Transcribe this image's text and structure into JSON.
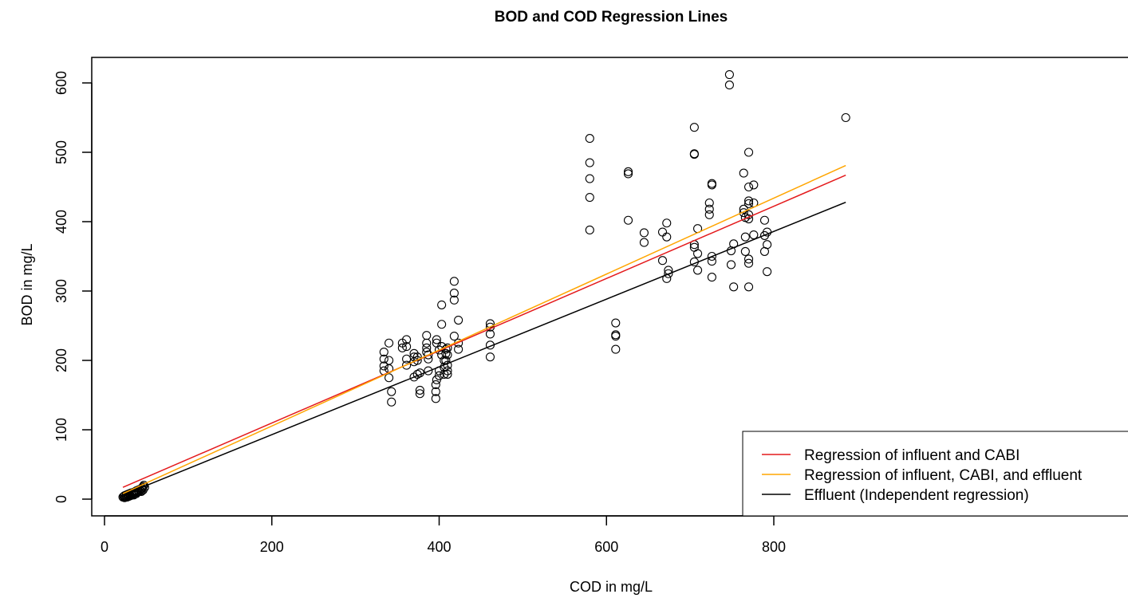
{
  "chart_data": {
    "type": "scatter",
    "title": "BOD and COD Regression Lines",
    "xlabel": "COD in mg/L",
    "ylabel": "BOD in mg/L",
    "xlim": [
      0,
      930
    ],
    "ylim": [
      -25,
      640
    ],
    "xticks": [
      0,
      200,
      400,
      600,
      800
    ],
    "yticks": [
      0,
      100,
      200,
      300,
      400,
      500,
      600
    ],
    "grid": false,
    "legend_position": "bottom-right",
    "points": [
      [
        22,
        3
      ],
      [
        23,
        4
      ],
      [
        24,
        2
      ],
      [
        24,
        5
      ],
      [
        25,
        3
      ],
      [
        26,
        4
      ],
      [
        26,
        6
      ],
      [
        27,
        3
      ],
      [
        28,
        5
      ],
      [
        28,
        7
      ],
      [
        29,
        4
      ],
      [
        30,
        6
      ],
      [
        30,
        8
      ],
      [
        31,
        5
      ],
      [
        32,
        7
      ],
      [
        32,
        9
      ],
      [
        33,
        6
      ],
      [
        34,
        8
      ],
      [
        35,
        10
      ],
      [
        35,
        6
      ],
      [
        36,
        9
      ],
      [
        37,
        11
      ],
      [
        38,
        8
      ],
      [
        38,
        12
      ],
      [
        39,
        10
      ],
      [
        40,
        13
      ],
      [
        41,
        11
      ],
      [
        42,
        14
      ],
      [
        43,
        12
      ],
      [
        44,
        15
      ],
      [
        45,
        16
      ],
      [
        46,
        18
      ],
      [
        47,
        20
      ],
      [
        48,
        17
      ],
      [
        44,
        11
      ],
      [
        46,
        13
      ],
      [
        334,
        212
      ],
      [
        334,
        202
      ],
      [
        334,
        192
      ],
      [
        334,
        185
      ],
      [
        340,
        225
      ],
      [
        340,
        200
      ],
      [
        340,
        188
      ],
      [
        340,
        175
      ],
      [
        343,
        155
      ],
      [
        343,
        140
      ],
      [
        356,
        225
      ],
      [
        356,
        218
      ],
      [
        361,
        230
      ],
      [
        361,
        220
      ],
      [
        361,
        202
      ],
      [
        361,
        193
      ],
      [
        370,
        210
      ],
      [
        370,
        205
      ],
      [
        370,
        198
      ],
      [
        370,
        176
      ],
      [
        374,
        205
      ],
      [
        374,
        200
      ],
      [
        374,
        180
      ],
      [
        377,
        182
      ],
      [
        377,
        157
      ],
      [
        377,
        152
      ],
      [
        385,
        236
      ],
      [
        385,
        225
      ],
      [
        385,
        218
      ],
      [
        385,
        212
      ],
      [
        387,
        208
      ],
      [
        387,
        202
      ],
      [
        387,
        185
      ],
      [
        396,
        145
      ],
      [
        396,
        155
      ],
      [
        396,
        165
      ],
      [
        397,
        172
      ],
      [
        397,
        230
      ],
      [
        397,
        225
      ],
      [
        400,
        215
      ],
      [
        400,
        185
      ],
      [
        400,
        178
      ],
      [
        403,
        280
      ],
      [
        403,
        252
      ],
      [
        403,
        220
      ],
      [
        403,
        208
      ],
      [
        406,
        200
      ],
      [
        406,
        190
      ],
      [
        406,
        180
      ],
      [
        408,
        216
      ],
      [
        408,
        210
      ],
      [
        408,
        200
      ],
      [
        410,
        218
      ],
      [
        410,
        208
      ],
      [
        410,
        193
      ],
      [
        410,
        185
      ],
      [
        410,
        180
      ],
      [
        418,
        314
      ],
      [
        418,
        297
      ],
      [
        418,
        287
      ],
      [
        418,
        235
      ],
      [
        423,
        258
      ],
      [
        423,
        225
      ],
      [
        423,
        216
      ],
      [
        461,
        253
      ],
      [
        461,
        248
      ],
      [
        461,
        238
      ],
      [
        461,
        222
      ],
      [
        461,
        205
      ],
      [
        580,
        520
      ],
      [
        580,
        485
      ],
      [
        580,
        462
      ],
      [
        580,
        435
      ],
      [
        580,
        388
      ],
      [
        611,
        254
      ],
      [
        611,
        237
      ],
      [
        611,
        235
      ],
      [
        611,
        216
      ],
      [
        626,
        472
      ],
      [
        626,
        469
      ],
      [
        626,
        402
      ],
      [
        645,
        384
      ],
      [
        645,
        370
      ],
      [
        667,
        385
      ],
      [
        667,
        344
      ],
      [
        672,
        398
      ],
      [
        672,
        378
      ],
      [
        672,
        318
      ],
      [
        674,
        330
      ],
      [
        674,
        325
      ],
      [
        705,
        536
      ],
      [
        705,
        498
      ],
      [
        705,
        497
      ],
      [
        705,
        367
      ],
      [
        705,
        363
      ],
      [
        705,
        342
      ],
      [
        709,
        390
      ],
      [
        709,
        354
      ],
      [
        709,
        330
      ],
      [
        723,
        427
      ],
      [
        723,
        418
      ],
      [
        723,
        410
      ],
      [
        726,
        455
      ],
      [
        726,
        453
      ],
      [
        726,
        350
      ],
      [
        726,
        343
      ],
      [
        726,
        320
      ],
      [
        747,
        612
      ],
      [
        747,
        597
      ],
      [
        749,
        338
      ],
      [
        749,
        358
      ],
      [
        752,
        368
      ],
      [
        752,
        306
      ],
      [
        764,
        470
      ],
      [
        764,
        418
      ],
      [
        764,
        413
      ],
      [
        766,
        406
      ],
      [
        766,
        378
      ],
      [
        766,
        357
      ],
      [
        770,
        500
      ],
      [
        770,
        450
      ],
      [
        770,
        430
      ],
      [
        770,
        426
      ],
      [
        770,
        410
      ],
      [
        770,
        404
      ],
      [
        770,
        346
      ],
      [
        770,
        340
      ],
      [
        770,
        306
      ],
      [
        776,
        453
      ],
      [
        776,
        427
      ],
      [
        776,
        381
      ],
      [
        789,
        402
      ],
      [
        789,
        380
      ],
      [
        789,
        357
      ],
      [
        792,
        385
      ],
      [
        792,
        367
      ],
      [
        792,
        328
      ],
      [
        886,
        550
      ]
    ],
    "series": [
      {
        "name": "Regression of influent and CABI",
        "color": "#e41a1c",
        "x": [
          22,
          886
        ],
        "y": [
          17,
          467
        ]
      },
      {
        "name": "Regression of influent, CABI, and effluent",
        "color": "#ffa500",
        "x": [
          22,
          886
        ],
        "y": [
          8,
          481
        ]
      },
      {
        "name": "Effluent (Independent regression)",
        "color": "#000000",
        "x": [
          22,
          886
        ],
        "y": [
          6,
          428
        ]
      }
    ]
  }
}
